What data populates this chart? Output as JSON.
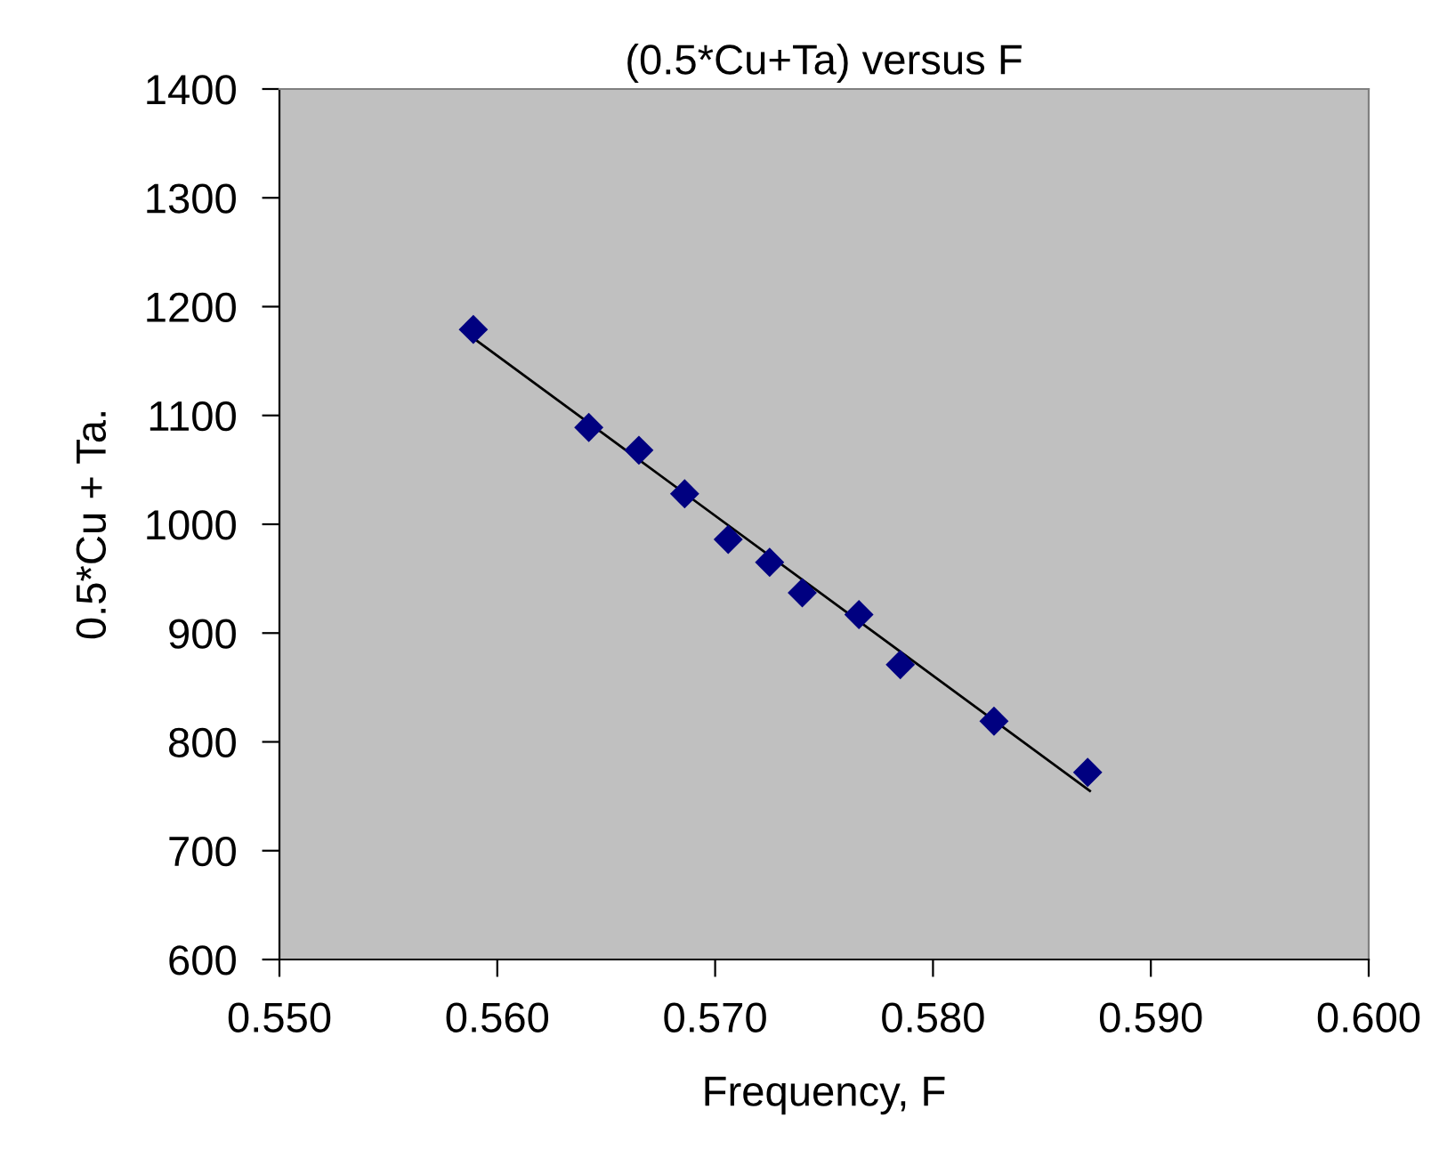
{
  "chart_data": {
    "type": "scatter",
    "title": "(0.5*Cu+Ta) versus F",
    "xlabel": "Frequency, F",
    "ylabel": "0.5*Cu + Ta.",
    "series": [
      {
        "color": "#000080",
        "marker": "diamond",
        "x": [
          0.5589,
          0.5642,
          0.5665,
          0.5686,
          0.5706,
          0.5725,
          0.574,
          0.5766,
          0.5785,
          0.5828,
          0.5871
        ],
        "values": [
          1179,
          1089,
          1068,
          1028,
          986,
          965,
          937,
          917,
          871,
          819,
          772
        ]
      },
      {
        "type": "line",
        "color": "#000000",
        "marker": "none",
        "line_style": "solid",
        "x": [
          0.5589,
          0.5872
        ],
        "values": [
          1171,
          755
        ]
      }
    ],
    "xlim": [
      0.55,
      0.6
    ],
    "xticks": [
      {
        "value": 0.55,
        "label": "0.550"
      },
      {
        "value": 0.56,
        "label": "0.560"
      },
      {
        "value": 0.57,
        "label": "0.570"
      },
      {
        "value": 0.58,
        "label": "0.580"
      },
      {
        "value": 0.59,
        "label": "0.590"
      },
      {
        "value": 0.6,
        "label": "0.600"
      }
    ],
    "ylim": [
      600,
      1400
    ],
    "yticks": [
      600,
      700,
      800,
      900,
      1000,
      1100,
      1200,
      1300,
      1400
    ],
    "grid": false,
    "legend": false
  }
}
